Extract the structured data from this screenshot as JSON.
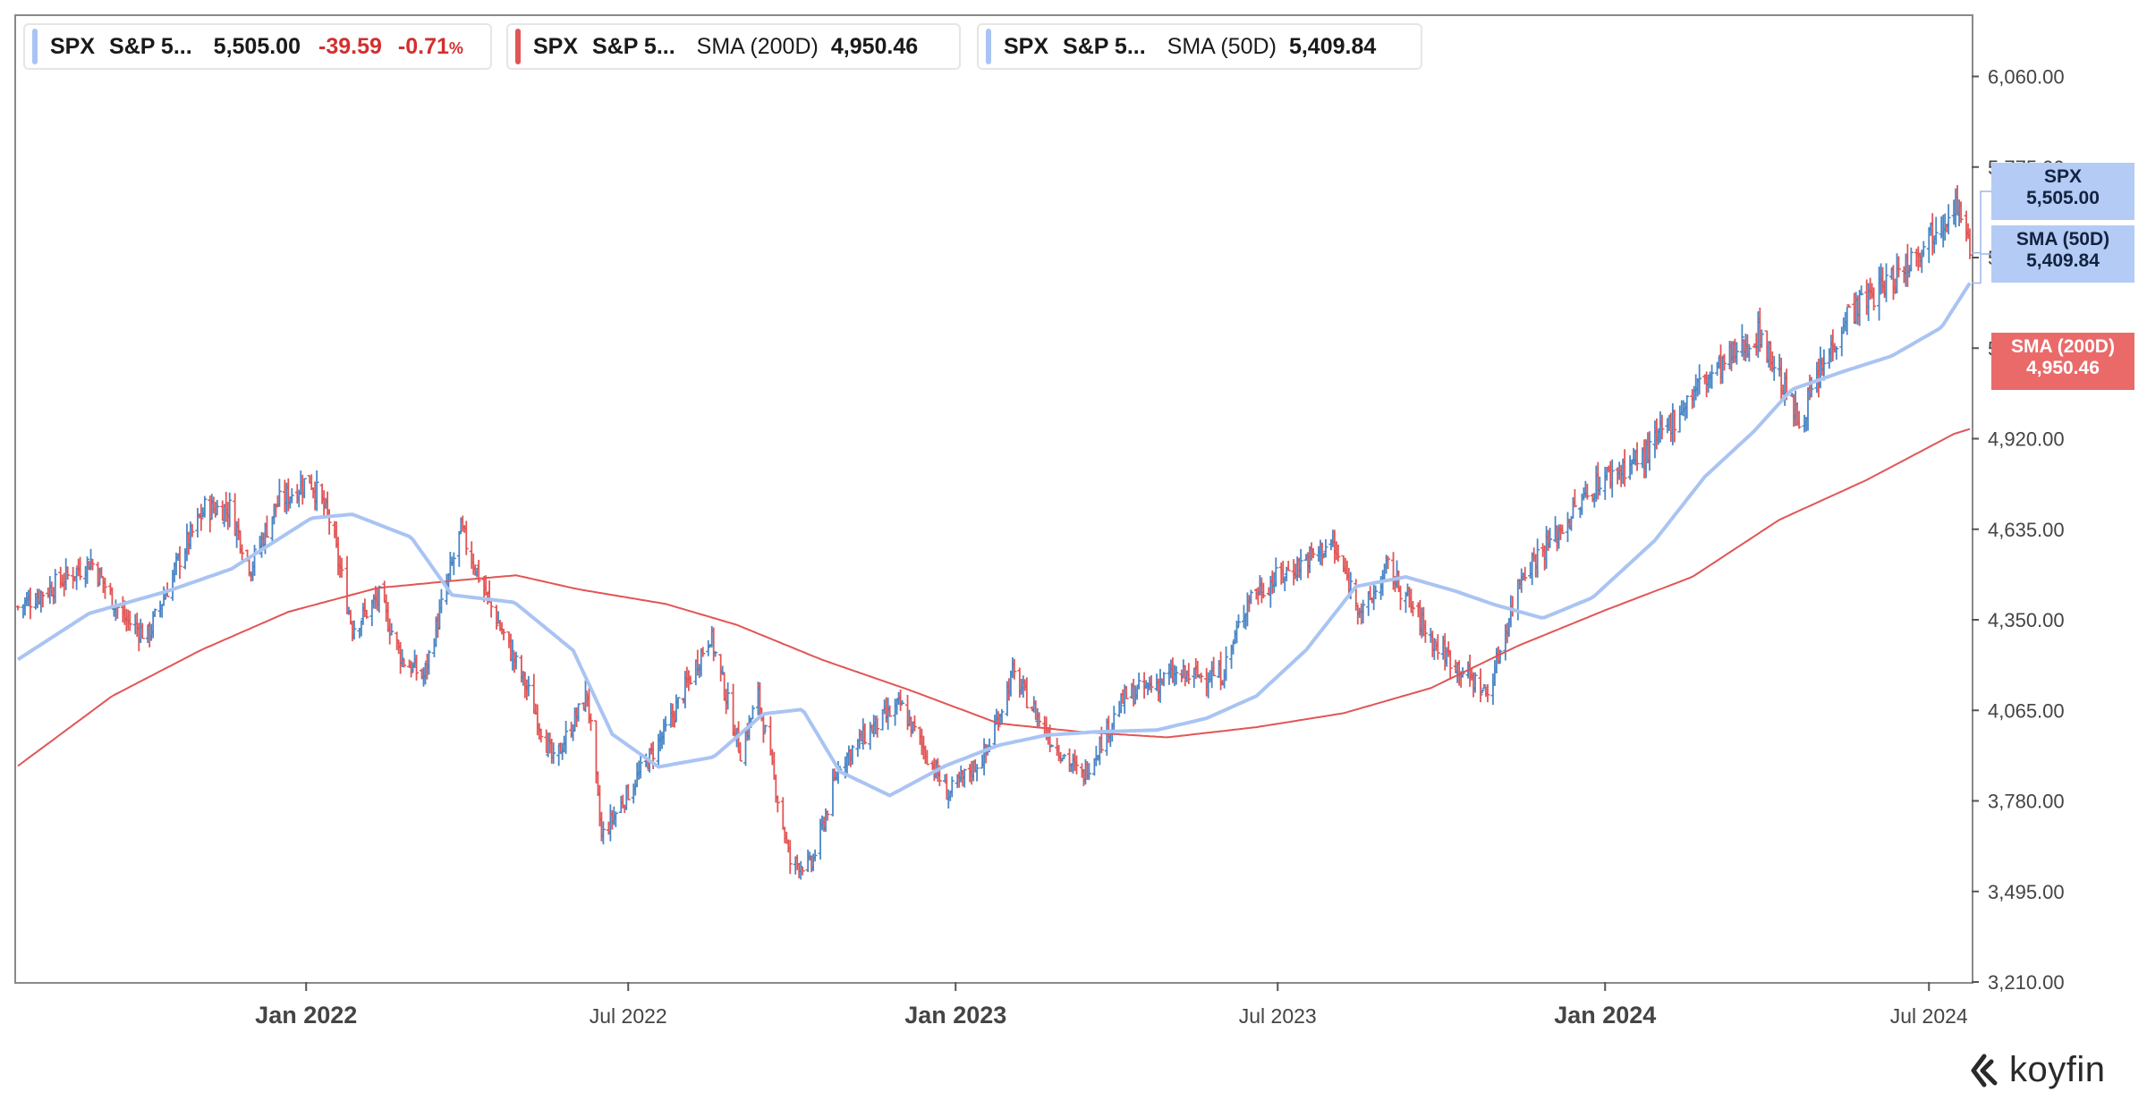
{
  "legend": [
    {
      "symbol": "SPX",
      "name": "S&P 5...",
      "value": "5,505.00",
      "change": "-39.59",
      "change_pct": "-0.71",
      "pct_sign": "%",
      "color": "#a9c4f3"
    },
    {
      "symbol": "SPX",
      "name": "S&P 5...",
      "indicator": "SMA (200D)",
      "value": "4,950.46",
      "color": "#e25555"
    },
    {
      "symbol": "SPX",
      "name": "S&P 5...",
      "indicator": "SMA (50D)",
      "value": "5,409.84",
      "color": "#a9c4f3"
    }
  ],
  "badges": {
    "spx": {
      "line1": "SPX",
      "line2": "5,505.00"
    },
    "sma50": {
      "line1": "SMA (50D)",
      "line2": "5,409.84"
    },
    "sma200": {
      "line1": "SMA (200D)",
      "line2": "4,950.46"
    }
  },
  "brand": "koyfin",
  "chart_data": {
    "type": "line",
    "title": "",
    "xlabel": "",
    "ylabel": "",
    "x_ticks": [
      {
        "label": "Jan 2022",
        "date": "2022-01-01",
        "bold": true
      },
      {
        "label": "Jul 2022",
        "date": "2022-07-01",
        "bold": false
      },
      {
        "label": "Jan 2023",
        "date": "2023-01-01",
        "bold": true
      },
      {
        "label": "Jul 2023",
        "date": "2023-07-01",
        "bold": false
      },
      {
        "label": "Jan 2024",
        "date": "2024-01-01",
        "bold": true
      },
      {
        "label": "Jul 2024",
        "date": "2024-07-01",
        "bold": false
      }
    ],
    "xlim": [
      "2021-07-22",
      "2024-07-25"
    ],
    "ylim": [
      3210,
      6250
    ],
    "y_ticks": [
      "3,210.00",
      "3,495.00",
      "3,780.00",
      "4,065.00",
      "4,350.00",
      "4,635.00",
      "4,920.00",
      "5,205.00",
      "5,490.00",
      "5,775.00",
      "6,060.00"
    ],
    "grid": false,
    "legend_position": "top-left",
    "colors": {
      "up": "#4a86c5",
      "down": "#e25555",
      "sma50": "#a9c4f3",
      "sma200": "#e25555"
    },
    "series": [
      {
        "name": "SPX",
        "style": "ohlc-bars",
        "x": [
          "2021-07-23",
          "2021-08-13",
          "2021-09-02",
          "2021-09-20",
          "2021-10-04",
          "2021-10-22",
          "2021-11-05",
          "2021-11-19",
          "2021-12-01",
          "2021-12-15",
          "2022-01-03",
          "2022-01-14",
          "2022-01-27",
          "2022-02-11",
          "2022-02-24",
          "2022-03-08",
          "2022-03-29",
          "2022-04-15",
          "2022-05-06",
          "2022-05-20",
          "2022-06-08",
          "2022-06-16",
          "2022-07-05",
          "2022-07-22",
          "2022-08-16",
          "2022-09-02",
          "2022-09-12",
          "2022-09-30",
          "2022-10-12",
          "2022-10-28",
          "2022-11-15",
          "2022-12-01",
          "2022-12-28",
          "2023-01-18",
          "2023-02-02",
          "2023-02-24",
          "2023-03-13",
          "2023-04-06",
          "2023-05-01",
          "2023-05-31",
          "2023-06-15",
          "2023-07-31",
          "2023-08-18",
          "2023-09-01",
          "2023-09-27",
          "2023-10-27",
          "2023-11-15",
          "2023-12-01",
          "2023-12-28",
          "2024-01-24",
          "2024-02-23",
          "2024-03-28",
          "2024-04-19",
          "2024-05-15",
          "2024-06-12",
          "2024-07-16",
          "2024-07-24"
        ],
        "values": [
          4390,
          4460,
          4536,
          4357,
          4300,
          4545,
          4700,
          4700,
          4515,
          4710,
          4796,
          4665,
          4326,
          4420,
          4225,
          4170,
          4632,
          4390,
          4120,
          3900,
          4115,
          3667,
          3845,
          4000,
          4305,
          3935,
          4110,
          3585,
          3577,
          3900,
          4010,
          4080,
          3800,
          3930,
          4180,
          3970,
          3855,
          4105,
          4170,
          4180,
          4425,
          4590,
          4370,
          4515,
          4275,
          4115,
          4500,
          4595,
          4785,
          4870,
          5090,
          5254,
          4970,
          5308,
          5430,
          5667,
          5505
        ]
      },
      {
        "name": "SMA (50D)",
        "style": "line",
        "x": [
          "2021-07-23",
          "2021-09-01",
          "2021-10-15",
          "2021-11-20",
          "2022-01-04",
          "2022-01-27",
          "2022-03-01",
          "2022-03-24",
          "2022-04-28",
          "2022-05-31",
          "2022-06-22",
          "2022-07-18",
          "2022-08-18",
          "2022-09-15",
          "2022-10-07",
          "2022-10-28",
          "2022-11-25",
          "2022-12-26",
          "2023-01-25",
          "2023-02-21",
          "2023-03-20",
          "2023-04-24",
          "2023-05-22",
          "2023-06-19",
          "2023-07-17",
          "2023-08-14",
          "2023-09-11",
          "2023-10-09",
          "2023-10-30",
          "2023-11-27",
          "2023-12-25",
          "2024-01-29",
          "2024-02-26",
          "2024-03-25",
          "2024-04-15",
          "2024-05-13",
          "2024-06-10",
          "2024-07-08",
          "2024-07-24"
        ],
        "values": [
          4225,
          4370,
          4440,
          4510,
          4670,
          4682,
          4610,
          4428,
          4405,
          4254,
          3990,
          3887,
          3918,
          4054,
          4068,
          3872,
          3797,
          3890,
          3955,
          3987,
          3997,
          4003,
          4040,
          4110,
          4255,
          4455,
          4485,
          4440,
          4399,
          4355,
          4420,
          4600,
          4800,
          4945,
          5075,
          5130,
          5180,
          5270,
          5409.84
        ]
      },
      {
        "name": "SMA (200D)",
        "style": "line",
        "x": [
          "2021-07-23",
          "2021-09-14",
          "2021-11-03",
          "2021-12-22",
          "2022-02-10",
          "2022-03-29",
          "2022-04-29",
          "2022-06-03",
          "2022-07-22",
          "2022-08-31",
          "2022-10-18",
          "2022-12-06",
          "2023-01-25",
          "2023-03-13",
          "2023-04-30",
          "2023-06-19",
          "2023-08-07",
          "2023-09-25",
          "2023-11-13",
          "2024-01-01",
          "2024-02-19",
          "2024-04-08",
          "2024-05-27",
          "2024-07-15",
          "2024-07-24"
        ],
        "values": [
          3890,
          4110,
          4255,
          4375,
          4450,
          4475,
          4490,
          4446,
          4400,
          4334,
          4224,
          4129,
          4024,
          3997,
          3980,
          4012,
          4056,
          4135,
          4268,
          4380,
          4485,
          4665,
          4790,
          4935,
          4950.46
        ]
      }
    ]
  }
}
